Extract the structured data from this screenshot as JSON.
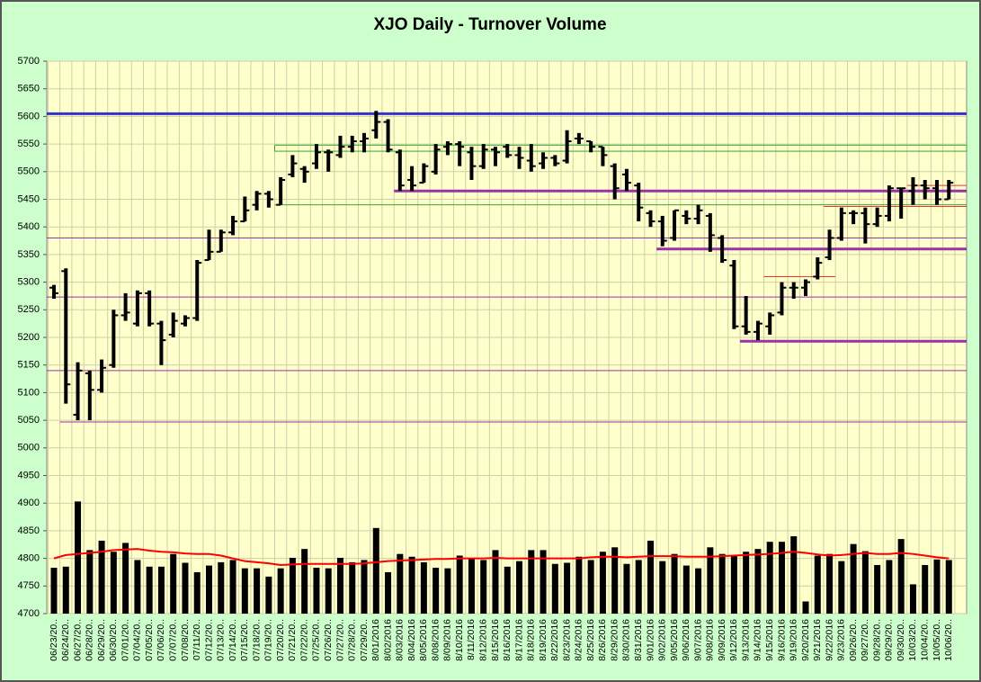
{
  "chart_data": {
    "type": "ohlc",
    "title": "XJO Daily - Turnover Volume",
    "categories": [
      "06/23/20..",
      "06/24/20..",
      "06/27/20..",
      "06/28/20..",
      "06/29/20..",
      "06/30/20..",
      "07/01/20..",
      "07/04/20..",
      "07/05/20..",
      "07/06/20..",
      "07/07/20..",
      "07/08/20..",
      "07/11/20..",
      "07/12/20..",
      "07/13/20..",
      "07/14/20..",
      "07/15/20..",
      "07/18/20..",
      "07/19/20..",
      "07/20/20..",
      "07/21/20..",
      "07/22/20..",
      "07/25/20..",
      "07/26/20..",
      "07/27/20..",
      "07/28/20..",
      "07/29/20..",
      "8/01/2016",
      "8/02/2016",
      "8/03/2016",
      "8/04/2016",
      "8/05/2016",
      "8/08/2016",
      "8/09/2016",
      "8/10/2016",
      "8/11/2016",
      "8/12/2016",
      "8/15/2016",
      "8/16/2016",
      "8/17/2016",
      "8/18/2016",
      "8/19/2016",
      "8/22/2016",
      "8/23/2016",
      "8/24/2016",
      "8/25/2016",
      "8/26/2016",
      "8/29/2016",
      "8/30/2016",
      "8/31/2016",
      "9/01/2016",
      "9/02/2016",
      "9/05/2016",
      "9/06/2016",
      "9/07/2016",
      "9/08/2016",
      "9/09/2016",
      "9/12/2016",
      "9/13/2016",
      "9/14/2016",
      "9/15/2016",
      "9/16/2016",
      "9/19/2016",
      "9/20/2016",
      "9/21/2016",
      "9/22/2016",
      "9/23/2016",
      "09/26/20..",
      "09/27/20..",
      "09/28/20..",
      "09/29/20..",
      "09/30/20..",
      "10/03/20..",
      "10/04/20..",
      "10/05/20..",
      "10/06/20.."
    ],
    "ohlc": {
      "color": "#000000",
      "open": [
        5290,
        5320,
        5060,
        5135,
        5105,
        5150,
        5240,
        5225,
        5280,
        5225,
        5205,
        5225,
        5235,
        5340,
        5355,
        5390,
        5410,
        5440,
        5460,
        5440,
        5495,
        5505,
        5515,
        5535,
        5530,
        5545,
        5555,
        5575,
        5590,
        5535,
        5485,
        5480,
        5500,
        5545,
        5550,
        5535,
        5510,
        5540,
        5545,
        5530,
        5520,
        5515,
        5525,
        5520,
        5560,
        5555,
        5545,
        5510,
        5495,
        5475,
        5425,
        5410,
        5380,
        5420,
        5415,
        5420,
        5380,
        5330,
        5220,
        5210,
        5220,
        5245,
        5290,
        5290,
        5310,
        5345,
        5380,
        5425,
        5425,
        5405,
        5420,
        5470,
        5465,
        5475,
        5470,
        5450
      ],
      "high": [
        5295,
        5325,
        5155,
        5140,
        5160,
        5250,
        5280,
        5285,
        5285,
        5230,
        5245,
        5240,
        5340,
        5395,
        5395,
        5420,
        5455,
        5465,
        5465,
        5490,
        5530,
        5510,
        5550,
        5540,
        5565,
        5565,
        5570,
        5610,
        5595,
        5540,
        5510,
        5515,
        5550,
        5555,
        5555,
        5545,
        5550,
        5545,
        5550,
        5545,
        5550,
        5535,
        5530,
        5575,
        5570,
        5555,
        5545,
        5515,
        5505,
        5480,
        5430,
        5420,
        5430,
        5430,
        5440,
        5425,
        5385,
        5340,
        5275,
        5230,
        5245,
        5300,
        5300,
        5305,
        5345,
        5395,
        5435,
        5430,
        5435,
        5435,
        5475,
        5470,
        5490,
        5485,
        5485,
        5485
      ],
      "low": [
        5270,
        5080,
        5050,
        5050,
        5100,
        5145,
        5230,
        5220,
        5220,
        5150,
        5200,
        5220,
        5230,
        5340,
        5355,
        5385,
        5410,
        5430,
        5435,
        5440,
        5490,
        5480,
        5505,
        5500,
        5525,
        5535,
        5535,
        5560,
        5535,
        5465,
        5465,
        5480,
        5495,
        5530,
        5510,
        5485,
        5505,
        5510,
        5525,
        5505,
        5500,
        5505,
        5510,
        5515,
        5550,
        5535,
        5510,
        5450,
        5465,
        5410,
        5400,
        5365,
        5375,
        5405,
        5405,
        5355,
        5335,
        5215,
        5205,
        5195,
        5205,
        5240,
        5270,
        5275,
        5305,
        5340,
        5375,
        5405,
        5370,
        5400,
        5410,
        5415,
        5440,
        5450,
        5440,
        5450
      ],
      "close": [
        5280,
        5115,
        5140,
        5105,
        5145,
        5240,
        5245,
        5280,
        5225,
        5195,
        5230,
        5235,
        5335,
        5355,
        5390,
        5410,
        5430,
        5460,
        5450,
        5485,
        5515,
        5500,
        5535,
        5535,
        5545,
        5555,
        5560,
        5590,
        5540,
        5475,
        5475,
        5510,
        5540,
        5550,
        5545,
        5510,
        5540,
        5535,
        5530,
        5525,
        5510,
        5525,
        5515,
        5555,
        5560,
        5545,
        5530,
        5470,
        5480,
        5435,
        5410,
        5375,
        5430,
        5415,
        5430,
        5385,
        5340,
        5220,
        5210,
        5225,
        5240,
        5290,
        5290,
        5300,
        5335,
        5380,
        5425,
        5425,
        5405,
        5420,
        5470,
        5470,
        5475,
        5470,
        5450,
        5480
      ]
    },
    "volume": {
      "color": "#000000",
      "values": [
        4783,
        4785,
        4903,
        4815,
        4832,
        4812,
        4828,
        4797,
        4785,
        4785,
        4808,
        4792,
        4775,
        4787,
        4793,
        4797,
        4782,
        4782,
        4767,
        4782,
        4801,
        4817,
        4783,
        4782,
        4801,
        4793,
        4797,
        4855,
        4775,
        4808,
        4803,
        4793,
        4783,
        4782,
        4805,
        4800,
        4797,
        4815,
        4785,
        4795,
        4815,
        4815,
        4790,
        4792,
        4803,
        4797,
        4812,
        4820,
        4790,
        4797,
        4832,
        4795,
        4808,
        4787,
        4782,
        4820,
        4808,
        4805,
        4812,
        4817,
        4830,
        4830,
        4840,
        4722,
        4805,
        4808,
        4795,
        4826,
        4813,
        4788,
        4797,
        4835,
        4753,
        4788,
        4798,
        4797
      ]
    },
    "average": {
      "color": "#ff0000",
      "values": [
        4800,
        4806,
        4808,
        4810,
        4812,
        4815,
        4816,
        4817,
        4814,
        4812,
        4811,
        4809,
        4808,
        4808,
        4805,
        4800,
        4795,
        4793,
        4791,
        4788,
        4789,
        4790,
        4790,
        4790,
        4790,
        4790,
        4791,
        4793,
        4795,
        4796,
        4797,
        4798,
        4799,
        4799,
        4800,
        4800,
        4800,
        4801,
        4800,
        4800,
        4800,
        4800,
        4800,
        4800,
        4800,
        4802,
        4803,
        4803,
        4802,
        4803,
        4804,
        4804,
        4804,
        4803,
        4803,
        4803,
        4804,
        4805,
        4806,
        4807,
        4808,
        4810,
        4812,
        4810,
        4807,
        4805,
        4806,
        4808,
        4810,
        4808,
        4808,
        4810,
        4808,
        4805,
        4802,
        4800
      ]
    },
    "levels": [
      {
        "value": 5605,
        "color": "#3333cc",
        "weight": "thick"
      },
      {
        "value": 5380,
        "color": "#9933aa",
        "weight": "thin"
      },
      {
        "value": 5273,
        "color": "#9933aa",
        "weight": "thin"
      },
      {
        "value": 5140,
        "color": "#9933aa",
        "weight": "thin"
      },
      {
        "value": 5047,
        "color": "#9933aa",
        "weight": "thin",
        "from": "06/24/20.."
      },
      {
        "value": 5465,
        "color": "#9933aa",
        "weight": "thick",
        "from": "8/03/2016"
      },
      {
        "value": 5360,
        "color": "#9933aa",
        "weight": "thick",
        "from": "9/02/2016"
      },
      {
        "value": 5193,
        "color": "#9933aa",
        "weight": "thick",
        "from": "9/13/2016"
      },
      {
        "value": 5310,
        "color": "#ee3333",
        "weight": "thin",
        "from": "9/15/2016",
        "to": "9/22/2016"
      },
      {
        "value": 5437,
        "color": "#ee3333",
        "weight": "thin",
        "from": "9/22/2016"
      },
      {
        "value": 5475,
        "color": "#ee3333",
        "weight": "thin",
        "from": "10/03/20.."
      },
      {
        "value": 5440,
        "color": "#33aa33",
        "weight": "thin",
        "from": "07/20/20.."
      },
      {
        "low": 5537,
        "high": 5548,
        "color": "#33aa33",
        "from": "07/20/20.."
      }
    ],
    "ylim": [
      4700,
      5700
    ],
    "yticks": [
      4700,
      4750,
      4800,
      4850,
      4900,
      4950,
      5000,
      5050,
      5100,
      5150,
      5200,
      5250,
      5300,
      5350,
      5400,
      5450,
      5500,
      5550,
      5600,
      5650,
      5700
    ],
    "grid": true
  }
}
